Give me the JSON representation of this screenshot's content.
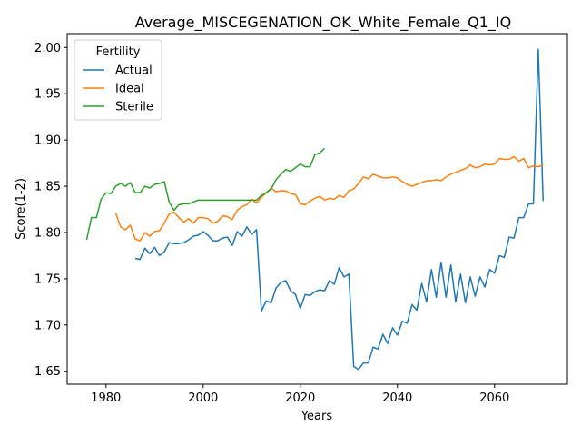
{
  "chart_data": {
    "type": "line",
    "title": "Average_MISCEGENATION_OK_White_Female_Q1_IQ",
    "xlabel": "Years",
    "ylabel": "Score(1-2)",
    "xlim": [
      1972,
      2075
    ],
    "ylim": [
      1.636,
      2.015
    ],
    "xticks": [
      1980,
      2000,
      2020,
      2040,
      2060
    ],
    "yticks": [
      1.65,
      1.7,
      1.75,
      1.8,
      1.85,
      1.9,
      1.95,
      2.0
    ],
    "xtick_labels": [
      "1980",
      "2000",
      "2020",
      "2040",
      "2060"
    ],
    "ytick_labels": [
      "1.65",
      "1.70",
      "1.75",
      "1.80",
      "1.85",
      "1.90",
      "1.95",
      "2.00"
    ],
    "grid": false,
    "legend": {
      "title": "Fertility",
      "position": "top-left"
    },
    "series": [
      {
        "name": "Actual",
        "color": "#1f77b4",
        "x": [
          1986,
          1987,
          1988,
          1989,
          1990,
          1991,
          1992,
          1993,
          1994,
          1995,
          1996,
          1997,
          1998,
          1999,
          2000,
          2001,
          2002,
          2003,
          2004,
          2005,
          2006,
          2007,
          2008,
          2009,
          2010,
          2011,
          2012,
          2013,
          2014,
          2015,
          2016,
          2017,
          2018,
          2019,
          2020,
          2021,
          2022,
          2023,
          2024,
          2025,
          2026,
          2027,
          2028,
          2029,
          2030,
          2031,
          2032,
          2033,
          2034,
          2035,
          2036,
          2037,
          2038,
          2039,
          2040,
          2041,
          2042,
          2043,
          2044,
          2045,
          2046,
          2047,
          2048,
          2049,
          2050,
          2051,
          2052,
          2053,
          2054,
          2055,
          2056,
          2057,
          2058,
          2059,
          2060,
          2061,
          2062,
          2063,
          2064,
          2065,
          2066,
          2067,
          2068,
          2069,
          2070
        ],
        "y": [
          1.772,
          1.771,
          1.783,
          1.777,
          1.784,
          1.775,
          1.779,
          1.789,
          1.788,
          1.788,
          1.789,
          1.792,
          1.796,
          1.797,
          1.801,
          1.797,
          1.791,
          1.791,
          1.794,
          1.795,
          1.786,
          1.801,
          1.796,
          1.806,
          1.798,
          1.803,
          1.715,
          1.726,
          1.724,
          1.74,
          1.746,
          1.748,
          1.737,
          1.733,
          1.718,
          1.733,
          1.732,
          1.736,
          1.738,
          1.737,
          1.748,
          1.744,
          1.762,
          1.752,
          1.755,
          1.655,
          1.652,
          1.659,
          1.659,
          1.676,
          1.674,
          1.69,
          1.68,
          1.697,
          1.689,
          1.704,
          1.702,
          1.722,
          1.716,
          1.745,
          1.725,
          1.76,
          1.73,
          1.768,
          1.73,
          1.765,
          1.725,
          1.755,
          1.724,
          1.752,
          1.731,
          1.752,
          1.741,
          1.76,
          1.756,
          1.775,
          1.773,
          1.795,
          1.794,
          1.816,
          1.816,
          1.831,
          1.831,
          1.998,
          1.834
        ]
      },
      {
        "name": "Ideal",
        "color": "#ff7f0e",
        "x": [
          1982,
          1983,
          1984,
          1985,
          1986,
          1987,
          1988,
          1989,
          1990,
          1991,
          1992,
          1993,
          1994,
          1995,
          1996,
          1997,
          1998,
          1999,
          2000,
          2001,
          2002,
          2003,
          2004,
          2005,
          2006,
          2007,
          2008,
          2009,
          2010,
          2011,
          2012,
          2013,
          2014,
          2015,
          2016,
          2017,
          2018,
          2019,
          2020,
          2021,
          2022,
          2023,
          2024,
          2025,
          2026,
          2027,
          2028,
          2029,
          2030,
          2031,
          2032,
          2033,
          2034,
          2035,
          2036,
          2037,
          2038,
          2039,
          2040,
          2041,
          2042,
          2043,
          2044,
          2045,
          2046,
          2047,
          2048,
          2049,
          2050,
          2051,
          2052,
          2053,
          2054,
          2055,
          2056,
          2057,
          2058,
          2059,
          2060,
          2061,
          2062,
          2063,
          2064,
          2065,
          2066,
          2067,
          2068,
          2069,
          2070
        ],
        "y": [
          1.821,
          1.806,
          1.803,
          1.808,
          1.793,
          1.791,
          1.8,
          1.796,
          1.801,
          1.802,
          1.81,
          1.82,
          1.822,
          1.816,
          1.811,
          1.815,
          1.81,
          1.816,
          1.816,
          1.815,
          1.81,
          1.812,
          1.818,
          1.817,
          1.814,
          1.824,
          1.828,
          1.83,
          1.836,
          1.832,
          1.838,
          1.843,
          1.848,
          1.844,
          1.845,
          1.845,
          1.842,
          1.841,
          1.831,
          1.83,
          1.834,
          1.837,
          1.839,
          1.835,
          1.837,
          1.836,
          1.84,
          1.838,
          1.845,
          1.847,
          1.853,
          1.86,
          1.858,
          1.863,
          1.861,
          1.859,
          1.859,
          1.86,
          1.859,
          1.855,
          1.852,
          1.85,
          1.852,
          1.854,
          1.856,
          1.856,
          1.857,
          1.856,
          1.86,
          1.863,
          1.865,
          1.867,
          1.869,
          1.873,
          1.87,
          1.871,
          1.874,
          1.873,
          1.874,
          1.88,
          1.879,
          1.879,
          1.882,
          1.877,
          1.88,
          1.87,
          1.872,
          1.871,
          1.873
        ]
      },
      {
        "name": "Sterile",
        "color": "#2ca02c",
        "x": [
          1976,
          1977,
          1978,
          1979,
          1980,
          1981,
          1982,
          1983,
          1984,
          1985,
          1986,
          1987,
          1988,
          1989,
          1990,
          1991,
          1992,
          1993,
          1994,
          1995,
          1996,
          1997,
          1998,
          1999,
          2000,
          2001,
          2002,
          2003,
          2004,
          2005,
          2006,
          2007,
          2008,
          2009,
          2010,
          2011,
          2012,
          2013,
          2014,
          2015,
          2016,
          2017,
          2018,
          2019,
          2020,
          2021,
          2022,
          2023,
          2024,
          2025
        ],
        "y": [
          1.792,
          1.816,
          1.816,
          1.836,
          1.843,
          1.842,
          1.85,
          1.853,
          1.85,
          1.854,
          1.843,
          1.843,
          1.85,
          1.848,
          1.852,
          1.853,
          1.855,
          1.833,
          1.824,
          1.83,
          1.831,
          1.831,
          1.833,
          1.835,
          1.835,
          1.835,
          1.835,
          1.835,
          1.835,
          1.835,
          1.835,
          1.835,
          1.835,
          1.835,
          1.835,
          1.835,
          1.84,
          1.843,
          1.847,
          1.857,
          1.863,
          1.868,
          1.866,
          1.87,
          1.874,
          1.871,
          1.871,
          1.884,
          1.886,
          1.891
        ]
      }
    ]
  }
}
